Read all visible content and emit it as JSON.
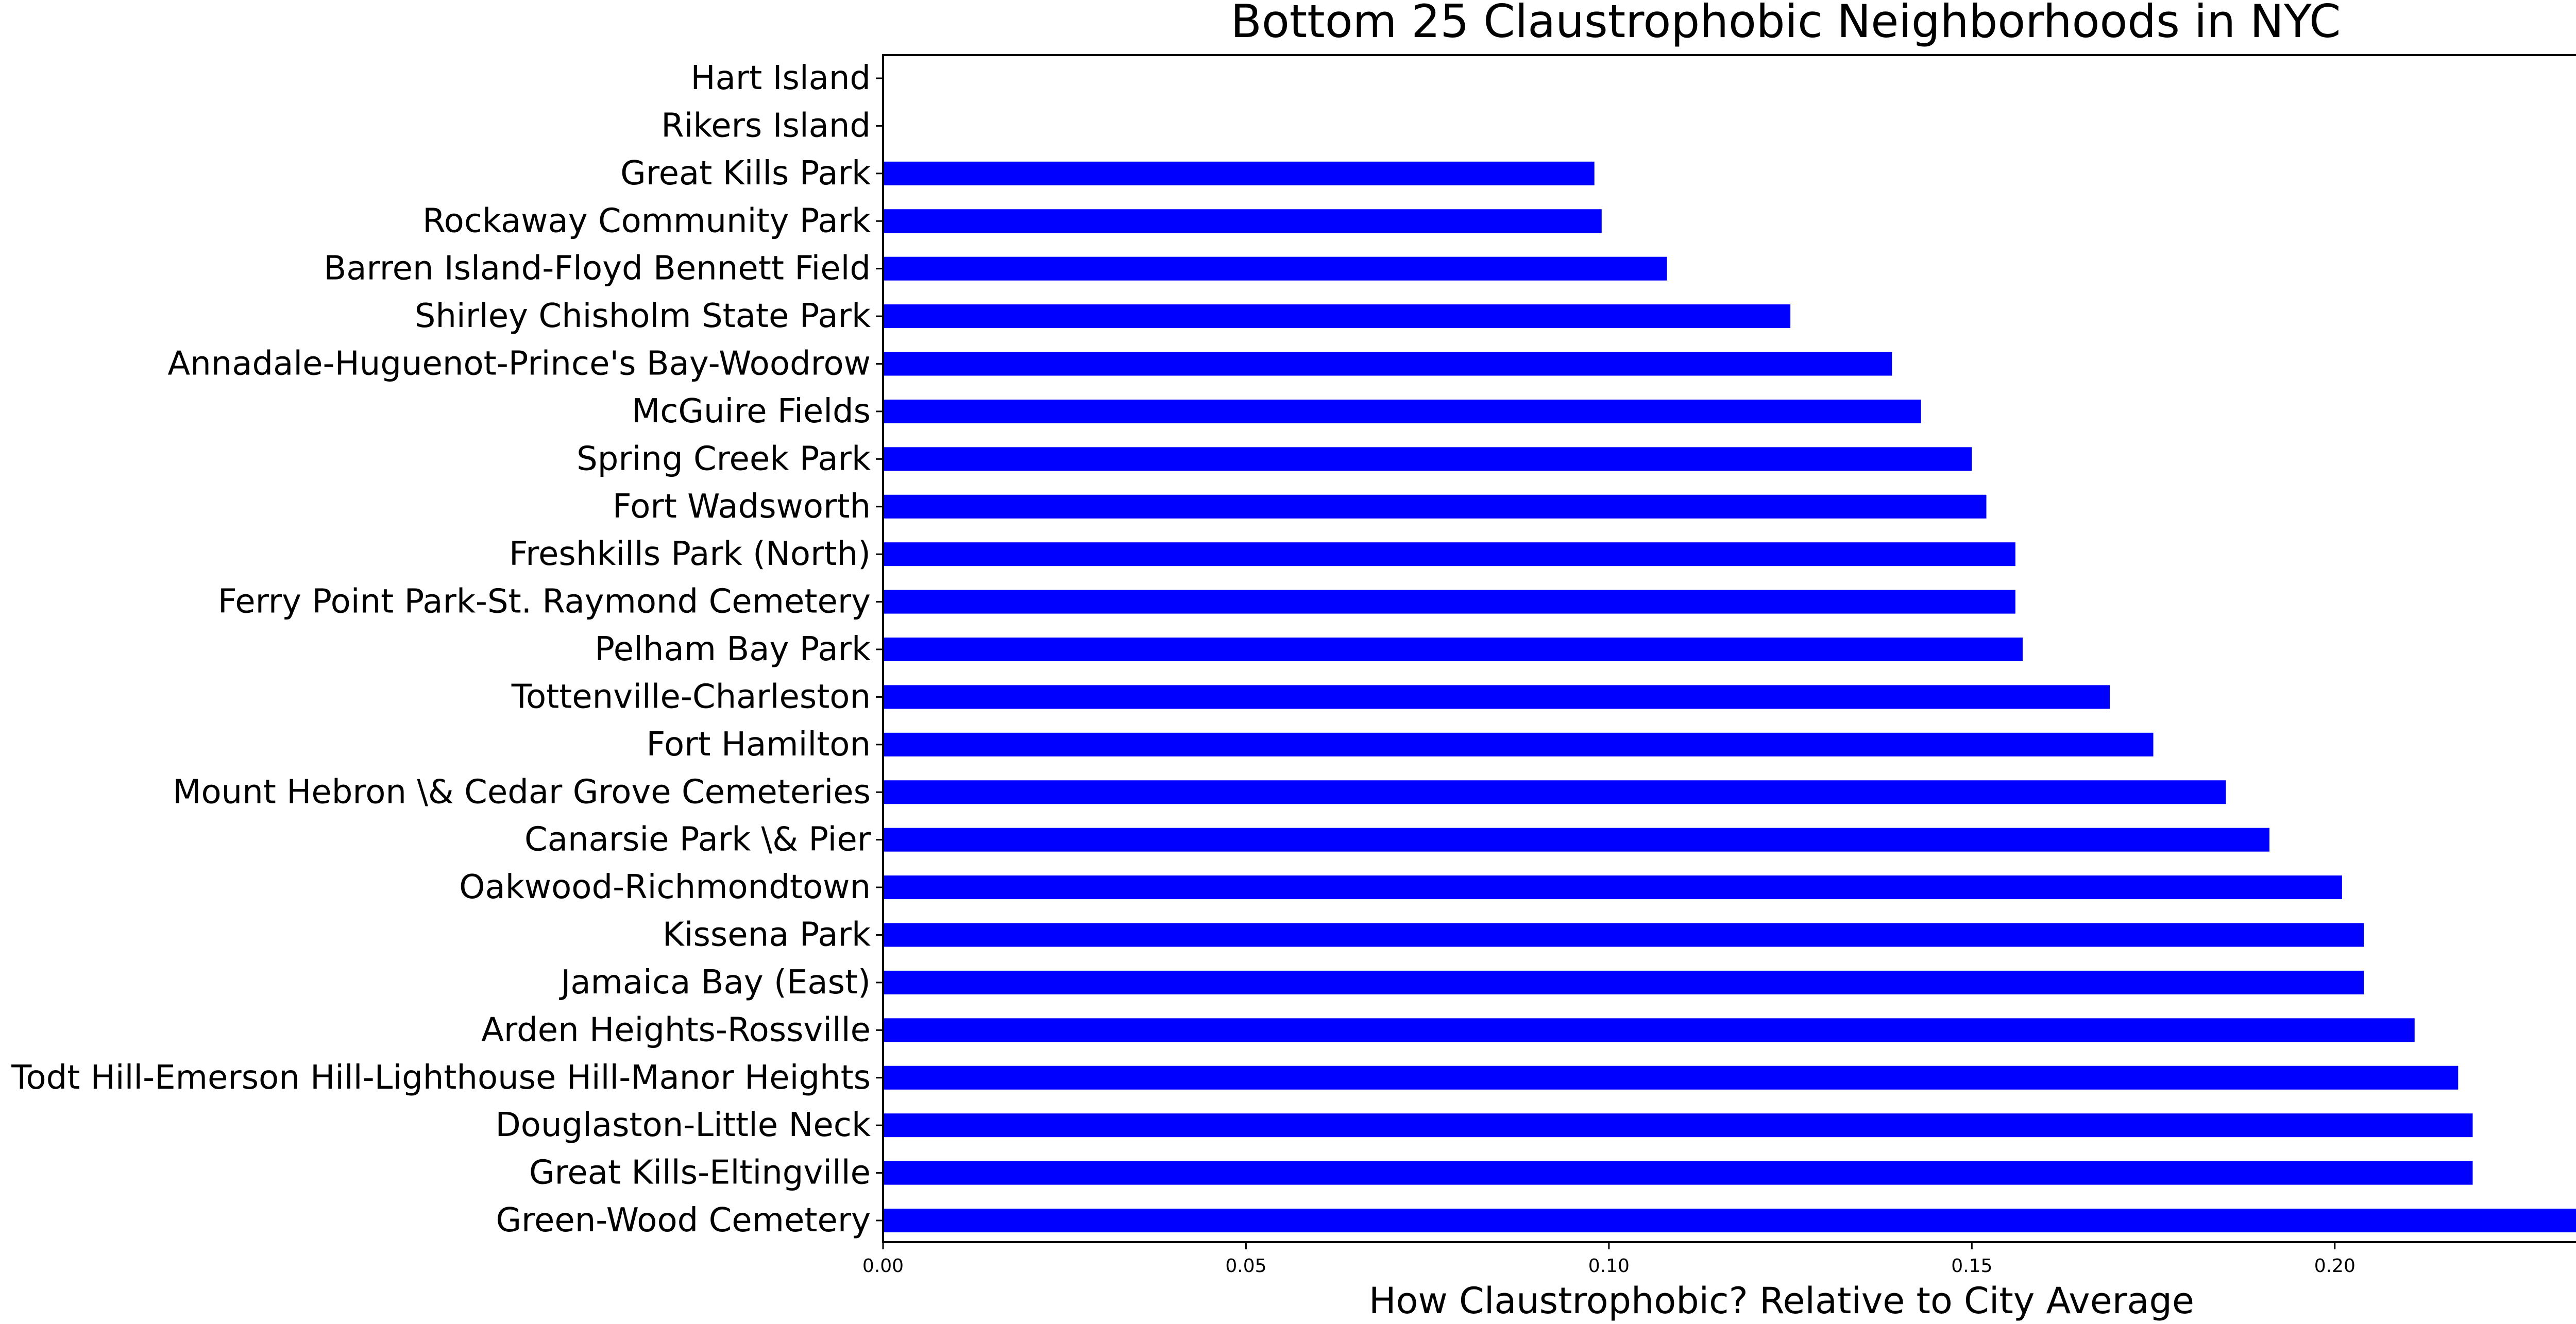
{
  "chart_data": {
    "type": "bar",
    "orientation": "horizontal",
    "title": "Bottom 25 Claustrophobic Neighborhoods in NYC",
    "xlabel": "How Claustrophobic? Relative to City Average",
    "ylabel": "",
    "xlim": [
      0,
      0.2475
    ],
    "xticks": [
      "0.00",
      "0.05",
      "0.10",
      "0.15",
      "0.20"
    ],
    "xtick_values": [
      0,
      0.05,
      0.1,
      0.15,
      0.2
    ],
    "bar_color": "#0000ff",
    "grid": false,
    "categories": [
      "Hart Island",
      "Rikers Island",
      "Great Kills Park",
      "Rockaway Community Park",
      "Barren Island-Floyd Bennett Field",
      "Shirley Chisholm State Park",
      "Annadale-Huguenot-Prince's Bay-Woodrow",
      "McGuire Fields",
      "Spring Creek Park",
      "Fort Wadsworth",
      "Freshkills Park (North)",
      "Ferry Point Park-St. Raymond Cemetery",
      "Pelham Bay Park",
      "Tottenville-Charleston",
      "Fort Hamilton",
      "Mount Hebron \\& Cedar Grove Cemeteries",
      "Canarsie Park \\& Pier",
      "Oakwood-Richmondtown",
      "Kissena Park",
      "Jamaica Bay (East)",
      "Arden Heights-Rossville",
      "Todt Hill-Emerson Hill-Lighthouse Hill-Manor Heights",
      "Douglaston-Little Neck",
      "Great Kills-Eltingville",
      "Green-Wood Cemetery"
    ],
    "values": [
      0,
      0,
      0.098,
      0.099,
      0.108,
      0.125,
      0.139,
      0.143,
      0.15,
      0.152,
      0.156,
      0.156,
      0.157,
      0.169,
      0.175,
      0.185,
      0.191,
      0.201,
      0.204,
      0.204,
      0.211,
      0.217,
      0.219,
      0.219,
      0.235
    ]
  }
}
